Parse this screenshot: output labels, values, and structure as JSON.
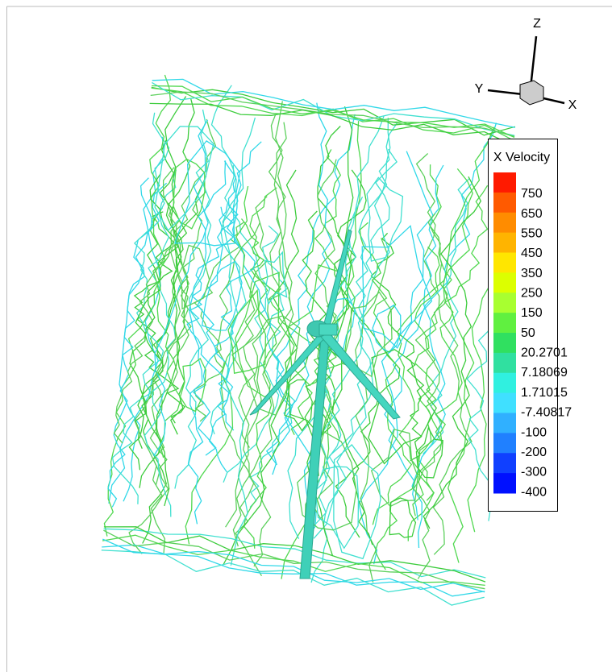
{
  "legend": {
    "title": "X Velocity",
    "levels": [
      "750",
      "650",
      "550",
      "450",
      "350",
      "250",
      "150",
      "50",
      "20.2701",
      "7.18069",
      "1.71015",
      "-7.40817",
      "-100",
      "-200",
      "-300",
      "-400"
    ]
  },
  "axes": {
    "x": "X",
    "y": "Y",
    "z": "Z"
  }
}
